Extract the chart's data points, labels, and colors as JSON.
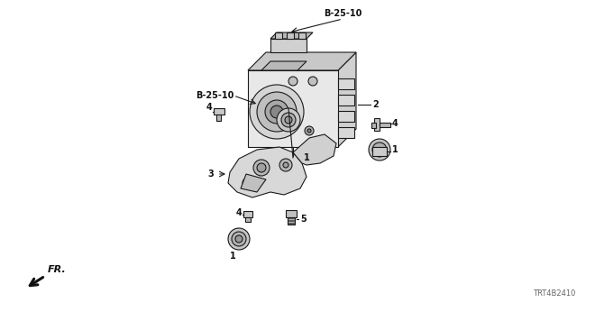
{
  "background_color": "#ffffff",
  "diagram_id": "TRT4B2410",
  "label_b2510_top": "B-25-10",
  "label_b2510_left": "B-25-10",
  "fr_label": "FR.",
  "line_color": "#1a1a1a",
  "text_color": "#111111",
  "gray_color": "#666666"
}
